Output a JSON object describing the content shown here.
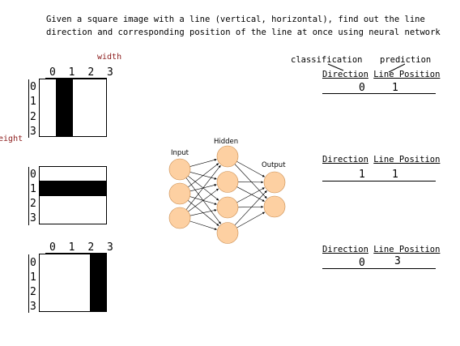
{
  "description": {
    "line1": "Given a  square image with a line (vertical, horizontal), find out the line",
    "line2": "direction and corresponding position of the line at once using neural network"
  },
  "labels": {
    "width": "width",
    "height": "height",
    "classification": "classification",
    "prediction": "prediction"
  },
  "col_indices": [
    "0",
    "1",
    "2",
    "3"
  ],
  "row_indices": [
    "0",
    "1",
    "2",
    "3"
  ],
  "network": {
    "input_label": "Input",
    "hidden_label": "Hidden",
    "output_label": "Output",
    "input_nodes": 3,
    "hidden_nodes": 4,
    "output_nodes": 2,
    "node_color": "#fdd0a2"
  },
  "examples": [
    {
      "direction_header": "Direction",
      "position_header": "Line Position",
      "direction": "0",
      "position": "1",
      "line_type": "vertical",
      "line_index": 1
    },
    {
      "direction_header": "Direction",
      "position_header": "Line Position",
      "direction": "1",
      "position": "1",
      "line_type": "horizontal",
      "line_index": 1
    },
    {
      "direction_header": "Direction",
      "position_header": "Line Position",
      "direction": "0",
      "position": "3",
      "line_type": "vertical",
      "line_index": 3
    }
  ]
}
